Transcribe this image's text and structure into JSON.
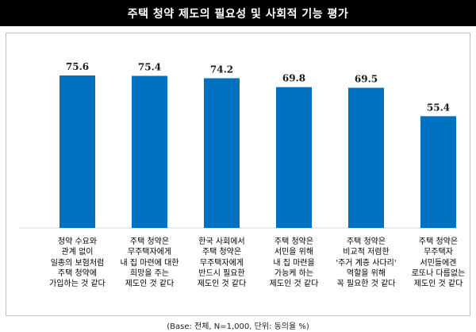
{
  "header": {
    "title": "주택 청약 제도의 필요성 및 사회적 기능 평가"
  },
  "note": "(Base: 전체, N=1,000, 단위: 동의율 %)",
  "colors": {
    "bar": "#0070C0",
    "title_bg": "#000000"
  },
  "chart_data": {
    "type": "bar",
    "title": "주택 청약 제도의 필요성 및 사회적 기능 평가",
    "xlabel": "",
    "ylabel": "",
    "ylim": [
      0,
      100
    ],
    "grid": false,
    "categories": [
      "청약 수요와\n관계 없이\n일종의 보험처럼\n주택 청약에\n가입하는 것 같다",
      "주택 청약은\n무주택자에게\n내 집 마련에 대한\n희망을 주는\n제도인 것 같다",
      "한국 사회에서\n주택 청약은\n무주택자에게\n반드시 필요한\n제도인 것 같다",
      "주택 청약은\n서민을 위해\n내 집 마련을\n가능케 하는\n제도인 것 같다",
      "주택 청약은\n비교적 저렴한\n'주거 계층 사다리'\n역할을 위해\n꼭 필요한 것 같다",
      "주택 청약은\n무주택자\n서민들에겐\n로또나 다름없는\n제도인 것 같다"
    ],
    "values": [
      75.6,
      75.4,
      74.2,
      69.8,
      69.5,
      55.4
    ],
    "value_labels": [
      "75.6",
      "75.4",
      "74.2",
      "69.8",
      "69.5",
      "55.4"
    ]
  }
}
